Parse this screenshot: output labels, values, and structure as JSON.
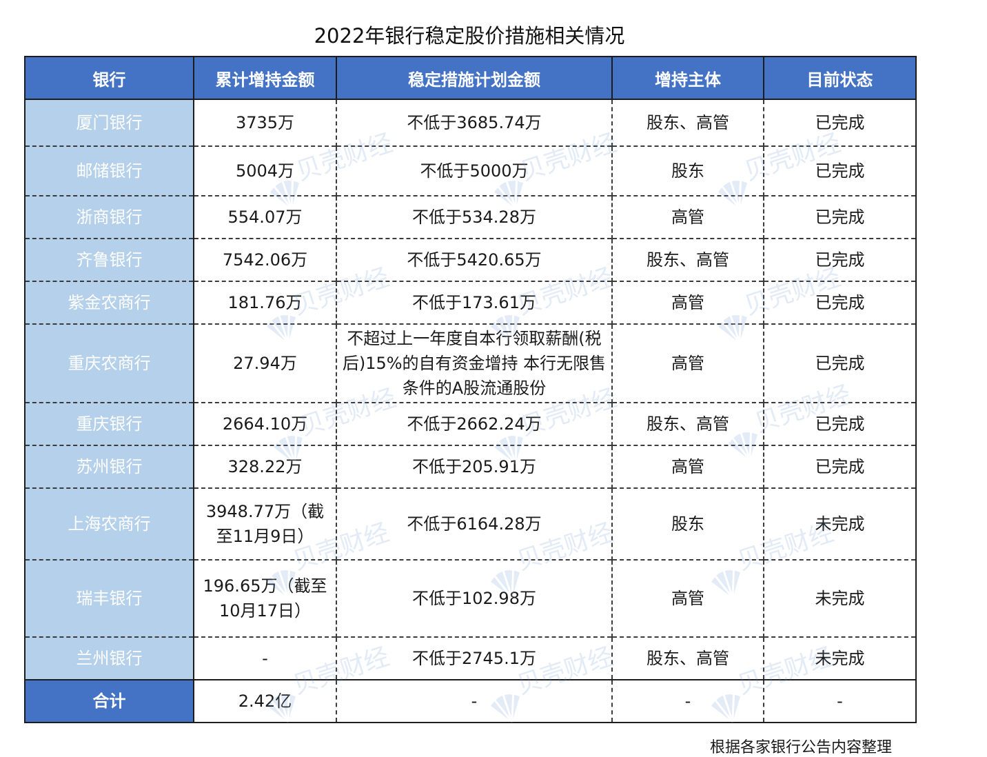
{
  "title": "2022年银行稳定股价措施相关情况",
  "headers": [
    "银行",
    "累计增持金额",
    "稳定措施计划金额",
    "增持主体",
    "目前状态"
  ],
  "rows": [
    {
      "bank": "厦门银行",
      "amount": "3735万",
      "plan": "不低于3685.74万",
      "subject": "股东、高管",
      "status": "已完成"
    },
    {
      "bank": "邮储银行",
      "amount": "5004万",
      "plan": "不低于5000万",
      "subject": "股东",
      "status": "已完成"
    },
    {
      "bank": "浙商银行",
      "amount": "554.07万",
      "plan": "不低于534.28万",
      "subject": "高管",
      "status": "已完成"
    },
    {
      "bank": "齐鲁银行",
      "amount": "7542.06万",
      "plan": "不低于5420.65万",
      "subject": "股东、高管",
      "status": "已完成"
    },
    {
      "bank": "紫金农商行",
      "amount": "181.76万",
      "plan": "不低于173.61万",
      "subject": "高管",
      "status": "已完成"
    },
    {
      "bank": "重庆农商行",
      "amount": "27.94万",
      "plan": "不超过上一年度自本行领取薪酬(税后)15%的自有资金增持 本行无限售条件的A股流通股份",
      "subject": "高管",
      "status": "已完成"
    },
    {
      "bank": "重庆银行",
      "amount": "2664.10万",
      "plan": "不低于2662.24万",
      "subject": "股东、高管",
      "status": "已完成"
    },
    {
      "bank": "苏州银行",
      "amount": "328.22万",
      "plan": "不低于205.91万",
      "subject": "高管",
      "status": "已完成"
    },
    {
      "bank": "上海农商行",
      "amount": "3948.77万（截至11月9日）",
      "plan": "不低于6164.28万",
      "subject": "股东",
      "status": "未完成"
    },
    {
      "bank": "瑞丰银行",
      "amount": "196.65万（截至10月17日）",
      "plan": "不低于102.98万",
      "subject": "高管",
      "status": "未完成"
    },
    {
      "bank": "兰州银行",
      "amount": "-",
      "plan": "不低于2745.1万",
      "subject": "股东、高管",
      "status": "未完成"
    }
  ],
  "total": {
    "bank": "合计",
    "amount": "2.42亿",
    "plan": "-",
    "subject": "-",
    "status": "-"
  },
  "watermark": "贝壳财经",
  "footnote": "根据各家银行公告内容整理",
  "colors": {
    "header_bg": "#4472c4",
    "bank_col_bg": "#b4d0ea",
    "watermark": "#5b8fd0"
  }
}
